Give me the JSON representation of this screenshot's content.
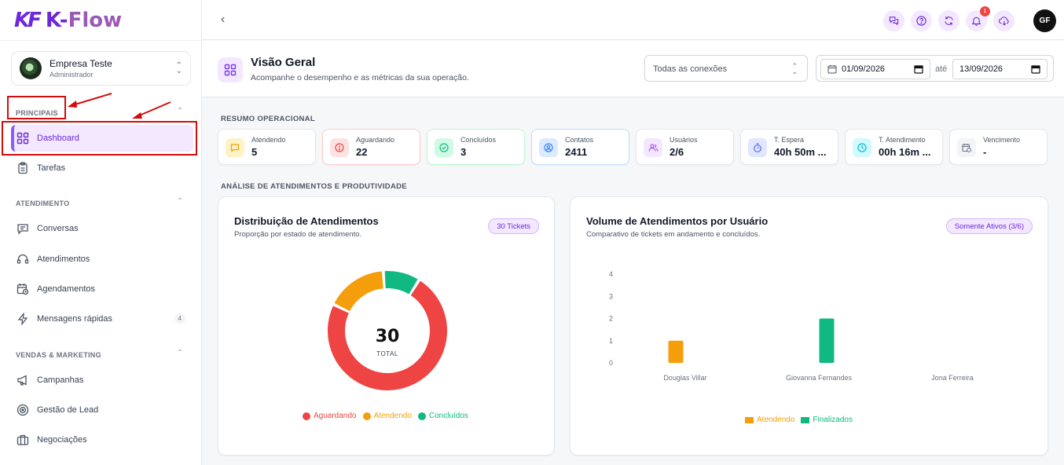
{
  "brand": {
    "mark": "KF",
    "name_a": "K-",
    "name_b": "Flow"
  },
  "company": {
    "name": "Empresa Teste",
    "role": "Administrador"
  },
  "sidebar": {
    "sections": [
      {
        "title": "PRINCIPAIS",
        "items": [
          {
            "label": "Dashboard",
            "icon": "dashboard-icon"
          },
          {
            "label": "Tarefas",
            "icon": "clipboard-icon"
          }
        ]
      },
      {
        "title": "ATENDIMENTO",
        "items": [
          {
            "label": "Conversas",
            "icon": "chat-icon"
          },
          {
            "label": "Atendimentos",
            "icon": "headset-icon"
          },
          {
            "label": "Agendamentos",
            "icon": "calendar-clock-icon"
          },
          {
            "label": "Mensagens rápidas",
            "icon": "bolt-icon",
            "badge": "4"
          }
        ]
      },
      {
        "title": "VENDAS & MARKETING",
        "items": [
          {
            "label": "Campanhas",
            "icon": "megaphone-icon"
          },
          {
            "label": "Gestão de Lead",
            "icon": "target-icon"
          },
          {
            "label": "Negociações",
            "icon": "briefcase-icon"
          }
        ]
      }
    ]
  },
  "topbar": {
    "notification_count": "1",
    "user_initials": "GF"
  },
  "header": {
    "title": "Visão Geral",
    "subtitle": "Acompanhe o desempenho e as métricas da sua operação.",
    "connection_select": "Todas as conexões",
    "date_from": "01/09/2026",
    "date_sep": "até",
    "date_to": "13/09/2026"
  },
  "summary": {
    "title": "RESUMO OPERACIONAL",
    "stats": [
      {
        "label": "Atendendo",
        "value": "5",
        "color": "#f59e0b",
        "bg": "#fef3c7"
      },
      {
        "label": "Aguardando",
        "value": "22",
        "color": "#ef4444",
        "bg": "#fee2e2"
      },
      {
        "label": "Concluídos",
        "value": "3",
        "color": "#10b981",
        "bg": "#d1fae5"
      },
      {
        "label": "Contatos",
        "value": "2411",
        "color": "#3b82f6",
        "bg": "#dbeafe"
      },
      {
        "label": "Usuários",
        "value": "2/6",
        "color": "#a855f7",
        "bg": "#f3e8ff"
      },
      {
        "label": "T. Espera",
        "value": "40h 50m ...",
        "color": "#6366f1",
        "bg": "#e0e7ff"
      },
      {
        "label": "T. Atendimento",
        "value": "00h 16m ...",
        "color": "#06b6d4",
        "bg": "#cffafe"
      },
      {
        "label": "Vencimento",
        "value": "-",
        "color": "#6b7280",
        "bg": "#f3f4f6"
      }
    ]
  },
  "analysis": {
    "title": "ANÁLISE DE ATENDIMENTOS E PRODUTIVIDADE"
  },
  "donut_card": {
    "title": "Distribuição de Atendimentos",
    "subtitle": "Proporção por estado de atendimento.",
    "pill": "30 Tickets",
    "total": "30",
    "total_label": "TOTAL"
  },
  "bar_card": {
    "title": "Volume de Atendimentos por Usuário",
    "subtitle": "Comparativo de tickets em andamento e concluídos.",
    "pill": "Somente Ativos (3/6)"
  },
  "chart_data": [
    {
      "type": "pie",
      "categories": [
        "Aguardando",
        "Atendendo",
        "Concluídos"
      ],
      "values": [
        22,
        5,
        3
      ],
      "colors": [
        "#ef4444",
        "#f59e0b",
        "#10b981"
      ],
      "legend": "bottom"
    },
    {
      "type": "bar",
      "categories": [
        "Douglas Villar",
        "Giovanna Fernandes",
        "Jona Ferreira"
      ],
      "series": [
        {
          "name": "Atendendo",
          "values": [
            1,
            0,
            0
          ],
          "color": "#f59e0b"
        },
        {
          "name": "Finalizados",
          "values": [
            0,
            2,
            0
          ],
          "color": "#10b981"
        }
      ],
      "ylim": [
        0,
        4
      ],
      "yticks": [
        "0",
        "1",
        "2",
        "3",
        "4"
      ],
      "grid": false,
      "legend": "bottom"
    }
  ]
}
